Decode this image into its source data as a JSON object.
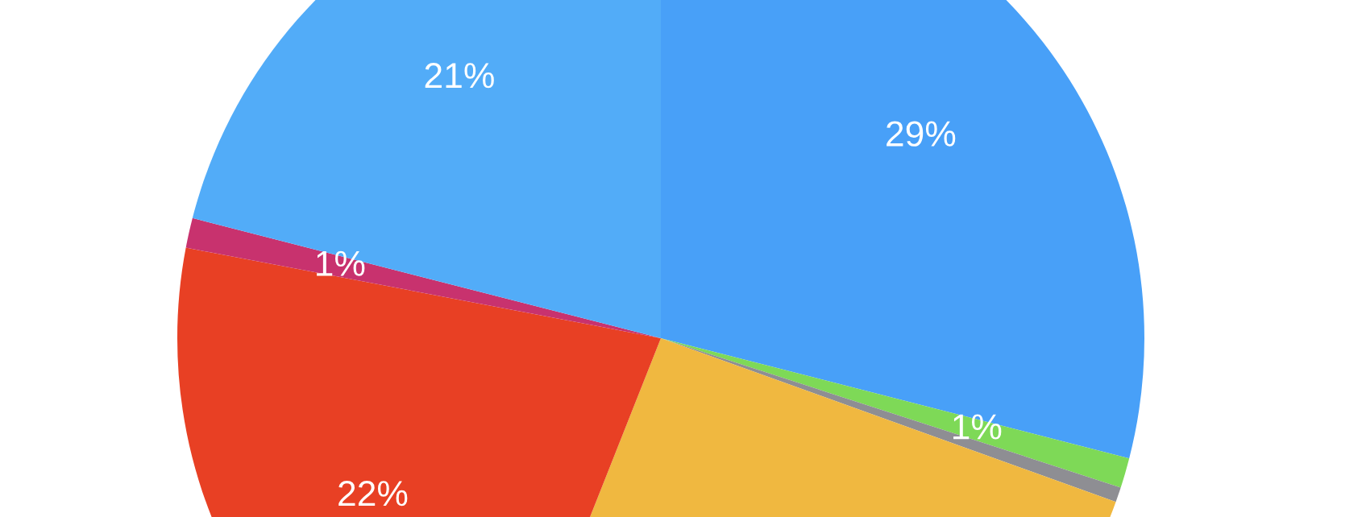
{
  "chart_data": {
    "type": "pie",
    "categories": [
      null,
      null,
      null,
      null,
      null,
      null,
      null
    ],
    "values": [
      29,
      1,
      0.5,
      25.5,
      22,
      1,
      21
    ],
    "colors": [
      "#48a0f8",
      "#7ed957",
      "#8e8e93",
      "#f0b840",
      "#e84024",
      "#c8326e",
      "#52acf8"
    ],
    "value_labels": [
      "29%",
      "1%",
      null,
      null,
      "22%",
      "1%",
      "21%"
    ]
  }
}
